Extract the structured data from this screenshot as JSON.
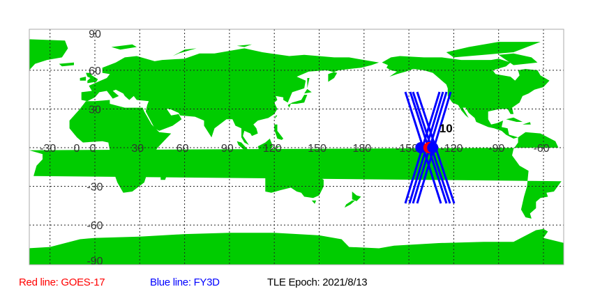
{
  "map": {
    "projection": "equirectangular",
    "center_longitude": 135,
    "land_color": "#00cc00",
    "ocean_color": "#ffffff",
    "grid": "dashed",
    "lon_labels": [
      "-30",
      "0",
      "30",
      "60",
      "90",
      "120",
      "150",
      "180",
      "-150",
      "-120",
      "-90",
      "-60"
    ],
    "lat_labels": [
      "90",
      "60",
      "30",
      "0",
      "-30",
      "-60",
      "-90"
    ],
    "satellite_marker_label": "10"
  },
  "satellites": [
    {
      "name": "GOES-17",
      "color": "#ff0000",
      "lon": -138,
      "lat": 0
    },
    {
      "name": "FY3D",
      "color": "#0000ff",
      "lon": -142,
      "lat": 0
    }
  ],
  "legend": {
    "red": "Red line: GOES-17",
    "blue": "Blue line: FY3D",
    "epoch": "TLE Epoch: 2021/8/13"
  }
}
